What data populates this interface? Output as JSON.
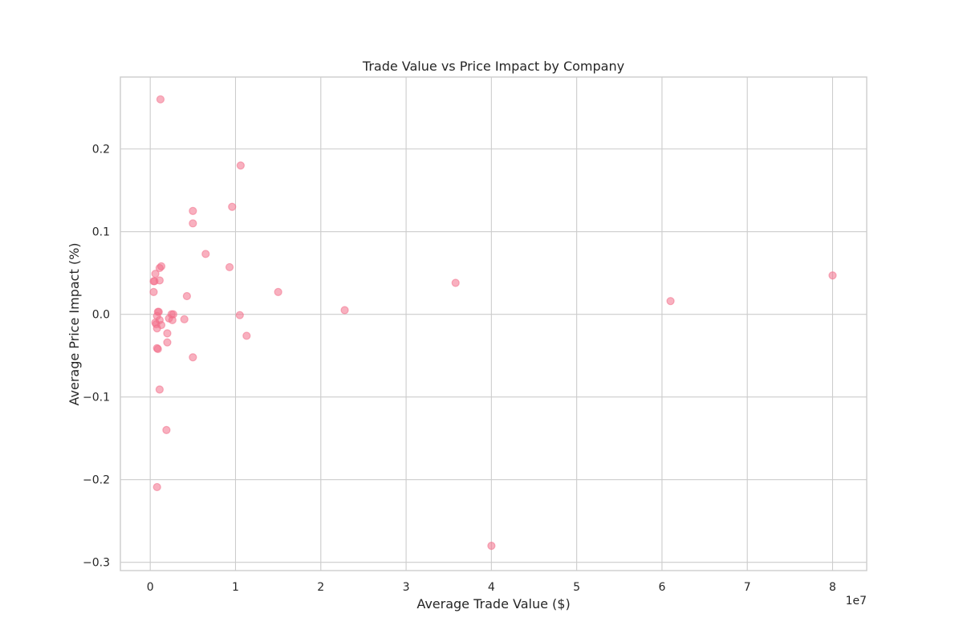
{
  "chart_data": {
    "type": "scatter",
    "title": "Trade Value vs Price Impact by Company",
    "xlabel": "Average Trade Value ($)",
    "ylabel": "Average Price Impact (%)",
    "x_offset_label": "1e7",
    "x_scale": 10000000,
    "xlim": [
      -3500000,
      84000000
    ],
    "ylim": [
      -0.31,
      0.287
    ],
    "x_ticks": [
      0,
      10000000,
      20000000,
      30000000,
      40000000,
      50000000,
      60000000,
      70000000,
      80000000
    ],
    "x_tick_labels": [
      "0",
      "1",
      "2",
      "3",
      "4",
      "5",
      "6",
      "7",
      "8"
    ],
    "y_ticks": [
      -0.3,
      -0.2,
      -0.1,
      0.0,
      0.1,
      0.2
    ],
    "y_tick_labels": [
      "−0.3",
      "−0.2",
      "−0.1",
      "0.0",
      "0.1",
      "0.2"
    ],
    "grid": true,
    "marker_color": "#f2708a",
    "marker_alpha": 0.55,
    "points": [
      {
        "x": 1200000,
        "y": 0.26
      },
      {
        "x": 10600000,
        "y": 0.18
      },
      {
        "x": 9600000,
        "y": 0.13
      },
      {
        "x": 5000000,
        "y": 0.125
      },
      {
        "x": 5000000,
        "y": 0.11
      },
      {
        "x": 6500000,
        "y": 0.073
      },
      {
        "x": 1300000,
        "y": 0.058
      },
      {
        "x": 1100000,
        "y": 0.056
      },
      {
        "x": 9300000,
        "y": 0.057
      },
      {
        "x": 600000,
        "y": 0.049
      },
      {
        "x": 500000,
        "y": 0.04
      },
      {
        "x": 400000,
        "y": 0.04
      },
      {
        "x": 1100000,
        "y": 0.041
      },
      {
        "x": 400000,
        "y": 0.027
      },
      {
        "x": 4300000,
        "y": 0.022
      },
      {
        "x": 15000000,
        "y": 0.027
      },
      {
        "x": 35800000,
        "y": 0.038
      },
      {
        "x": 80000000,
        "y": 0.047
      },
      {
        "x": 61000000,
        "y": 0.016
      },
      {
        "x": 22800000,
        "y": 0.005
      },
      {
        "x": 900000,
        "y": 0.003
      },
      {
        "x": 1000000,
        "y": 0.003
      },
      {
        "x": 800000,
        "y": -0.002
      },
      {
        "x": 2500000,
        "y": 0.0
      },
      {
        "x": 2700000,
        "y": 0.0
      },
      {
        "x": 10500000,
        "y": -0.001
      },
      {
        "x": 2200000,
        "y": -0.005
      },
      {
        "x": 4000000,
        "y": -0.006
      },
      {
        "x": 1100000,
        "y": -0.007
      },
      {
        "x": 2600000,
        "y": -0.007
      },
      {
        "x": 600000,
        "y": -0.01
      },
      {
        "x": 700000,
        "y": -0.012
      },
      {
        "x": 1300000,
        "y": -0.013
      },
      {
        "x": 800000,
        "y": -0.017
      },
      {
        "x": 2000000,
        "y": -0.023
      },
      {
        "x": 11300000,
        "y": -0.026
      },
      {
        "x": 2000000,
        "y": -0.034
      },
      {
        "x": 800000,
        "y": -0.041
      },
      {
        "x": 900000,
        "y": -0.042
      },
      {
        "x": 5000000,
        "y": -0.052
      },
      {
        "x": 1100000,
        "y": -0.091
      },
      {
        "x": 1900000,
        "y": -0.14
      },
      {
        "x": 800000,
        "y": -0.209
      },
      {
        "x": 40000000,
        "y": -0.28
      }
    ]
  }
}
